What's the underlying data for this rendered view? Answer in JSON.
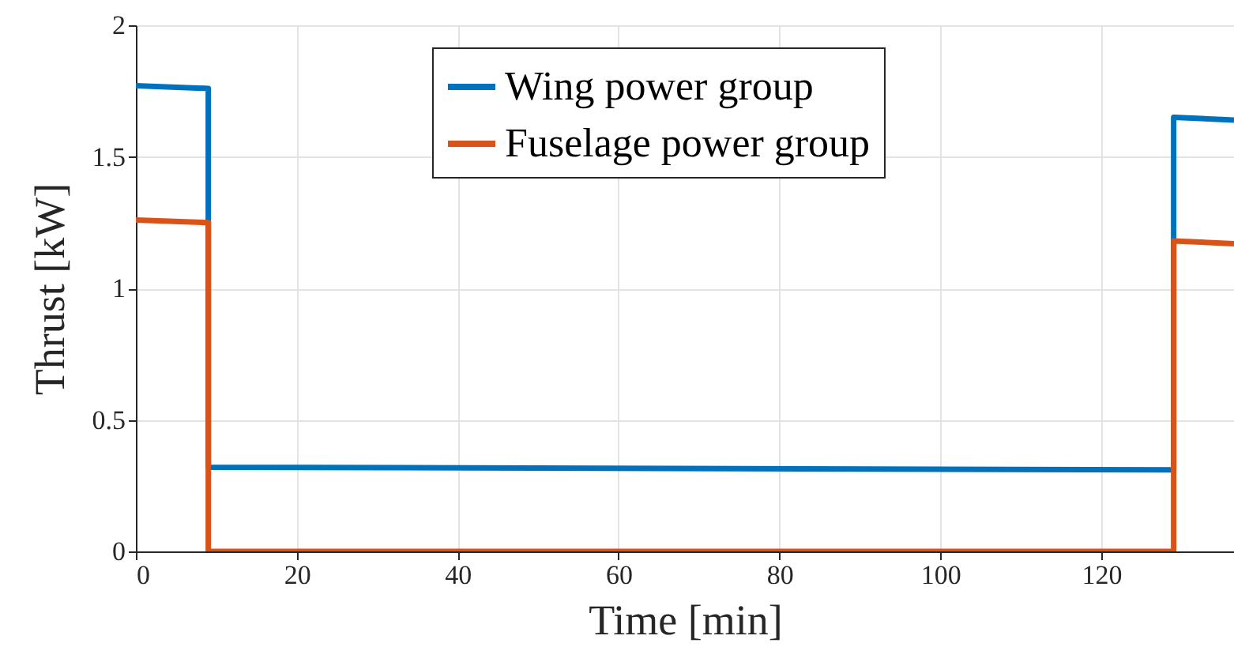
{
  "chart_data": {
    "type": "line",
    "xlabel": "Time [min]",
    "ylabel": "Thrust [kW]",
    "xlim": [
      0,
      136.5
    ],
    "xticks": [
      0,
      20,
      40,
      60,
      80,
      100,
      120
    ],
    "ylim": [
      0,
      2
    ],
    "yticks": [
      0,
      0.5,
      1,
      1.5,
      2
    ],
    "grid": true,
    "legend": "top",
    "marker": "none",
    "line_style": "solid",
    "series": [
      {
        "name": "Wing power group",
        "color": "#0072bd",
        "x": [
          0,
          9,
          9,
          129,
          129,
          136.5
        ],
        "values": [
          1.77,
          1.76,
          0.32,
          0.31,
          1.65,
          1.64
        ]
      },
      {
        "name": "Fuselage power group",
        "color": "#d95319",
        "x": [
          0,
          9,
          9,
          129,
          129,
          136.5
        ],
        "values": [
          1.26,
          1.25,
          0,
          0,
          1.18,
          1.17
        ]
      }
    ]
  }
}
